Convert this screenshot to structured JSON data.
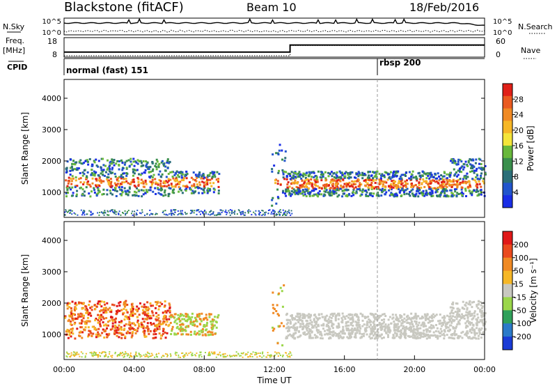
{
  "header": {
    "station": "Blackstone (fitACF)",
    "beam": "Beam 10",
    "date": "18/Feb/2016"
  },
  "chart_data": [
    {
      "type": "line",
      "name": "noise-panel",
      "left_label": "N.Sky",
      "right_label": "N.Search",
      "left_ticks": [
        "10^5",
        "10^0"
      ],
      "right_ticks": [
        "10^5",
        "10^0"
      ],
      "series": [
        {
          "name": "N.Sky",
          "style": "solid"
        },
        {
          "name": "N.Search",
          "style": "dotted"
        }
      ]
    },
    {
      "type": "line",
      "name": "frequency-panel",
      "left_label": "Freq.",
      "left_unit": "[MHz]",
      "right_label": "Nave",
      "left_ticks": [
        "18",
        "8"
      ],
      "right_ticks": [
        "60",
        "0"
      ],
      "x": [
        0,
        12.9,
        12.9,
        24
      ],
      "freq_mhz": [
        10.4,
        10.4,
        15.0,
        15.0
      ],
      "nave": [
        0,
        0,
        40,
        40
      ]
    },
    {
      "type": "table",
      "name": "cpid-panel",
      "label": "CPID",
      "segments": [
        {
          "start_hour": 0,
          "text": "normal (fast) 151"
        },
        {
          "start_hour": 17.85,
          "text": "rbsp 200"
        }
      ]
    },
    {
      "type": "heatmap",
      "name": "power-panel",
      "ylabel": "Slant Range [km]",
      "yticks": [
        1000,
        2000,
        3000,
        4000
      ],
      "ylim": [
        200,
        4600
      ],
      "xlim": [
        0,
        24
      ],
      "colorbar": {
        "label": "Power [dB]",
        "ticks": [
          "4",
          "8",
          "12",
          "16",
          "20",
          "24",
          "28"
        ],
        "colors": [
          "#1a2ee6",
          "#2255cc",
          "#2b6e78",
          "#3a8f4c",
          "#68b83b",
          "#f4e53a",
          "#f6b726",
          "#f08a24",
          "#ea5a20",
          "#e02018"
        ]
      }
    },
    {
      "type": "heatmap",
      "name": "velocity-panel",
      "ylabel": "Slant Range [km]",
      "yticks": [
        1000,
        2000,
        3000,
        4000
      ],
      "ylim": [
        200,
        4600
      ],
      "xlim": [
        0,
        24
      ],
      "xticks": [
        "00:00",
        "04:00",
        "08:00",
        "12:00",
        "16:00",
        "20:00",
        "00:00"
      ],
      "xlabel": "Time UT",
      "colorbar": {
        "label": "Velocity [m s⁻¹]",
        "ticks": [
          "200",
          "100",
          "50",
          "15",
          "-15",
          "-50",
          "-100",
          "-200"
        ],
        "colors": [
          "#1a3bd6",
          "#2b7ac9",
          "#2fa05a",
          "#9ad64a",
          "#c8c8c0",
          "#f6b726",
          "#f08a24",
          "#ea4a1e",
          "#e01818"
        ]
      }
    }
  ]
}
